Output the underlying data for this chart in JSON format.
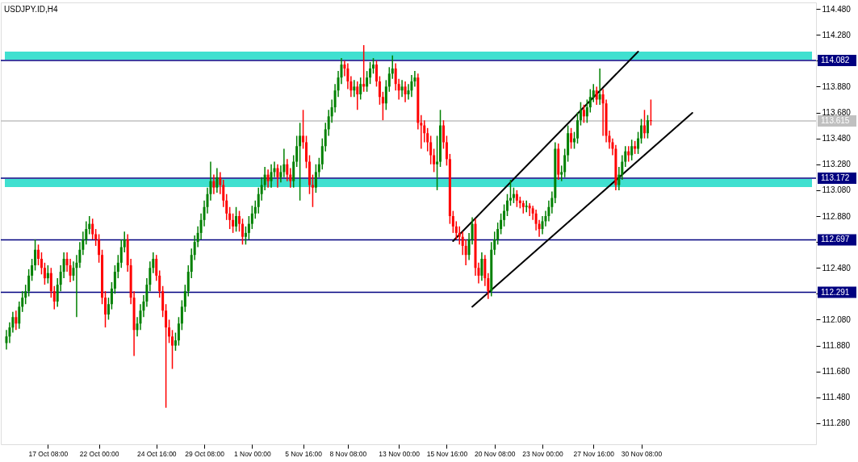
{
  "chart_data": {
    "type": "candlestick",
    "title": "USDJPY.ID,H4",
    "categories": [
      null,
      null,
      null,
      null,
      null,
      null,
      null,
      null,
      null,
      null,
      null,
      null,
      null,
      "17 Oct 08:00",
      null,
      null,
      null,
      null,
      null,
      null,
      null,
      null,
      null,
      null,
      null,
      null,
      null,
      null,
      null,
      "22 Oct 00:00",
      null,
      null,
      null,
      null,
      null,
      null,
      null,
      null,
      null,
      null,
      null,
      null,
      null,
      null,
      null,
      null,
      null,
      "24 Oct 16:00",
      null,
      null,
      null,
      null,
      null,
      null,
      null,
      null,
      null,
      null,
      null,
      null,
      null,
      null,
      "29 Oct 08:00",
      null,
      null,
      null,
      null,
      null,
      null,
      null,
      null,
      null,
      null,
      null,
      null,
      null,
      null,
      "1 Nov 00:00",
      null,
      null,
      null,
      null,
      null,
      null,
      null,
      null,
      null,
      null,
      null,
      null,
      null,
      null,
      null,
      "5 Nov 16:00",
      null,
      null,
      null,
      null,
      null,
      null,
      null,
      null,
      null,
      null,
      null,
      null,
      null,
      "8 Nov 08:00",
      null,
      null,
      null,
      null,
      null,
      null,
      null,
      null,
      null,
      null,
      null,
      null,
      null,
      null,
      null,
      "13 Nov 00:00",
      null,
      null,
      null,
      null,
      null,
      null,
      null,
      null,
      null,
      null,
      null,
      null,
      null,
      null,
      "15 Nov 16:00",
      null,
      null,
      null,
      null,
      null,
      null,
      null,
      null,
      null,
      null,
      null,
      null,
      null,
      null,
      "20 Nov 08:00",
      null,
      null,
      null,
      null,
      null,
      null,
      null,
      null,
      null,
      null,
      null,
      null,
      null,
      null,
      "23 Nov 00:00",
      null,
      null,
      null,
      null,
      null,
      null,
      null,
      null,
      null,
      null,
      null,
      null,
      null,
      null,
      null,
      "27 Nov 16:00",
      null,
      null,
      null,
      null,
      null,
      null,
      null,
      null,
      null,
      null,
      null,
      null,
      null,
      null,
      "30 Nov 08:00",
      null,
      null,
      null,
      null,
      null,
      null,
      null,
      null,
      null,
      null,
      null,
      null,
      null,
      null,
      null,
      null,
      null,
      null,
      null,
      null,
      null,
      null,
      null,
      null,
      null,
      null,
      null,
      null,
      null,
      null,
      null,
      null,
      null,
      null,
      null,
      null,
      null,
      null,
      null,
      null,
      null,
      null,
      null,
      null,
      null,
      null,
      null,
      null,
      null,
      null,
      null,
      null,
      null
    ],
    "ohlc": [
      [
        111.9,
        112.0,
        111.85,
        111.95
      ],
      [
        111.95,
        112.06,
        111.9,
        112.02
      ],
      [
        112.02,
        112.14,
        111.98,
        112.1
      ],
      [
        112.1,
        112.15,
        112.0,
        112.05
      ],
      [
        112.05,
        112.22,
        112.01,
        112.18
      ],
      [
        112.18,
        112.3,
        112.14,
        112.25
      ],
      [
        112.25,
        112.35,
        112.2,
        112.3
      ],
      [
        112.3,
        112.47,
        112.26,
        112.42
      ],
      [
        112.42,
        112.55,
        112.38,
        112.5
      ],
      [
        112.5,
        112.7,
        112.46,
        112.62
      ],
      [
        112.62,
        112.66,
        112.5,
        112.55
      ],
      [
        112.55,
        112.6,
        112.43,
        112.48
      ],
      [
        112.48,
        112.52,
        112.35,
        112.4
      ],
      [
        112.4,
        112.5,
        112.36,
        112.44
      ],
      [
        112.44,
        112.48,
        112.25,
        112.3
      ],
      [
        112.3,
        112.34,
        112.16,
        112.22
      ],
      [
        112.22,
        112.4,
        112.18,
        112.35
      ],
      [
        112.35,
        112.5,
        112.3,
        112.45
      ],
      [
        112.45,
        112.6,
        112.4,
        112.55
      ],
      [
        112.55,
        112.6,
        112.45,
        112.5
      ],
      [
        112.5,
        112.55,
        112.37,
        112.42
      ],
      [
        112.42,
        112.53,
        112.38,
        112.48
      ],
      [
        112.48,
        112.58,
        112.1,
        112.52
      ],
      [
        112.52,
        112.68,
        112.48,
        112.62
      ],
      [
        112.62,
        112.76,
        112.58,
        112.7
      ],
      [
        112.7,
        112.84,
        112.66,
        112.78
      ],
      [
        112.78,
        112.88,
        112.74,
        112.82
      ],
      [
        112.82,
        112.86,
        112.7,
        112.74
      ],
      [
        112.74,
        112.78,
        112.65,
        112.7
      ],
      [
        112.7,
        112.74,
        112.52,
        112.58
      ],
      [
        112.58,
        112.62,
        112.2,
        112.25
      ],
      [
        112.25,
        112.3,
        112.02,
        112.12
      ],
      [
        112.12,
        112.25,
        112.08,
        112.2
      ],
      [
        112.2,
        112.37,
        112.16,
        112.32
      ],
      [
        112.32,
        112.5,
        112.28,
        112.45
      ],
      [
        112.45,
        112.58,
        112.4,
        112.52
      ],
      [
        112.52,
        112.7,
        112.48,
        112.64
      ],
      [
        112.64,
        112.76,
        112.6,
        112.7
      ],
      [
        112.7,
        112.74,
        112.45,
        112.5
      ],
      [
        112.5,
        112.55,
        112.2,
        112.25
      ],
      [
        112.25,
        112.3,
        111.8,
        112.0
      ],
      [
        112.0,
        112.1,
        111.95,
        112.05
      ],
      [
        112.05,
        112.2,
        112.0,
        112.15
      ],
      [
        112.15,
        112.27,
        112.1,
        112.22
      ],
      [
        112.22,
        112.4,
        112.18,
        112.35
      ],
      [
        112.35,
        112.53,
        112.3,
        112.48
      ],
      [
        112.48,
        112.6,
        112.44,
        112.55
      ],
      [
        112.55,
        112.58,
        112.38,
        112.42
      ],
      [
        112.42,
        112.46,
        112.25,
        112.3
      ],
      [
        112.3,
        112.34,
        112.1,
        112.15
      ],
      [
        112.15,
        112.2,
        111.4,
        112.02
      ],
      [
        112.02,
        112.08,
        111.9,
        111.95
      ],
      [
        111.95,
        112.0,
        111.7,
        111.88
      ],
      [
        111.88,
        111.98,
        111.84,
        111.92
      ],
      [
        111.92,
        112.1,
        111.88,
        112.05
      ],
      [
        112.05,
        112.23,
        112.0,
        112.18
      ],
      [
        112.18,
        112.35,
        112.14,
        112.3
      ],
      [
        112.3,
        112.5,
        112.26,
        112.45
      ],
      [
        112.45,
        112.63,
        112.4,
        112.58
      ],
      [
        112.58,
        112.73,
        112.54,
        112.68
      ],
      [
        112.68,
        112.8,
        112.64,
        112.75
      ],
      [
        112.75,
        112.9,
        112.7,
        112.85
      ],
      [
        112.85,
        113.0,
        112.8,
        112.95
      ],
      [
        112.95,
        113.1,
        112.9,
        113.05
      ],
      [
        113.05,
        113.3,
        113.0,
        113.15
      ],
      [
        113.15,
        113.2,
        113.05,
        113.1
      ],
      [
        113.1,
        113.25,
        113.06,
        113.18
      ],
      [
        113.18,
        113.22,
        113.05,
        113.12
      ],
      [
        113.12,
        113.16,
        112.95,
        113.0
      ],
      [
        113.0,
        113.05,
        112.85,
        112.9
      ],
      [
        112.9,
        112.95,
        112.78,
        112.85
      ],
      [
        112.85,
        112.9,
        112.75,
        112.8
      ],
      [
        112.8,
        112.95,
        112.76,
        112.88
      ],
      [
        112.88,
        112.92,
        112.76,
        112.82
      ],
      [
        112.82,
        112.86,
        112.66,
        112.72
      ],
      [
        112.72,
        112.8,
        112.66,
        112.75
      ],
      [
        112.75,
        112.88,
        112.7,
        112.82
      ],
      [
        112.82,
        112.96,
        112.78,
        112.9
      ],
      [
        112.9,
        113.0,
        112.86,
        112.95
      ],
      [
        112.95,
        113.1,
        112.9,
        113.05
      ],
      [
        113.05,
        113.18,
        113.0,
        113.12
      ],
      [
        113.12,
        113.26,
        113.08,
        113.2
      ],
      [
        113.2,
        113.24,
        113.1,
        113.15
      ],
      [
        113.15,
        113.28,
        113.1,
        113.22
      ],
      [
        113.22,
        113.3,
        113.18,
        113.25
      ],
      [
        113.25,
        113.28,
        113.1,
        113.18
      ],
      [
        113.18,
        113.27,
        113.14,
        113.22
      ],
      [
        113.22,
        113.4,
        113.18,
        113.28
      ],
      [
        113.28,
        113.32,
        113.15,
        113.2
      ],
      [
        113.2,
        113.25,
        113.1,
        113.15
      ],
      [
        113.15,
        113.35,
        113.1,
        113.3
      ],
      [
        113.3,
        113.5,
        113.26,
        113.42
      ],
      [
        113.42,
        113.6,
        113.0,
        113.5
      ],
      [
        113.5,
        113.7,
        113.4,
        113.45
      ],
      [
        113.45,
        113.5,
        113.25,
        113.3
      ],
      [
        113.3,
        113.35,
        113.05,
        113.12
      ],
      [
        113.12,
        113.2,
        112.95,
        113.1
      ],
      [
        113.1,
        113.28,
        113.06,
        113.22
      ],
      [
        113.22,
        113.33,
        113.18,
        113.28
      ],
      [
        113.28,
        113.48,
        113.24,
        113.42
      ],
      [
        113.42,
        113.6,
        113.38,
        113.55
      ],
      [
        113.55,
        113.7,
        113.5,
        113.65
      ],
      [
        113.65,
        113.78,
        113.6,
        113.72
      ],
      [
        113.72,
        113.9,
        113.68,
        113.85
      ],
      [
        113.85,
        114.0,
        113.8,
        113.95
      ],
      [
        113.95,
        114.1,
        113.9,
        114.05
      ],
      [
        114.05,
        114.08,
        113.96,
        114.02
      ],
      [
        114.02,
        114.06,
        113.86,
        113.92
      ],
      [
        113.92,
        113.96,
        113.8,
        113.85
      ],
      [
        113.85,
        113.93,
        113.8,
        113.88
      ],
      [
        113.88,
        113.92,
        113.7,
        113.82
      ],
      [
        113.82,
        113.95,
        113.78,
        113.9
      ],
      [
        113.9,
        114.2,
        113.84,
        113.88
      ],
      [
        113.88,
        114.0,
        113.84,
        113.95
      ],
      [
        113.95,
        114.07,
        113.9,
        114.02
      ],
      [
        114.02,
        114.1,
        113.98,
        114.05
      ],
      [
        114.05,
        114.08,
        113.88,
        113.92
      ],
      [
        113.92,
        113.96,
        113.74,
        113.8
      ],
      [
        113.8,
        113.84,
        113.62,
        113.75
      ],
      [
        113.75,
        113.93,
        113.7,
        113.88
      ],
      [
        113.88,
        114.03,
        113.84,
        113.98
      ],
      [
        113.98,
        114.12,
        113.94,
        114.02
      ],
      [
        114.02,
        114.06,
        113.85,
        113.9
      ],
      [
        113.9,
        113.94,
        113.78,
        113.85
      ],
      [
        113.85,
        113.93,
        113.8,
        113.88
      ],
      [
        113.88,
        113.92,
        113.76,
        113.82
      ],
      [
        113.82,
        113.9,
        113.78,
        113.85
      ],
      [
        113.85,
        113.97,
        113.8,
        113.92
      ],
      [
        113.92,
        114.0,
        113.88,
        113.95
      ],
      [
        113.95,
        113.98,
        113.55,
        113.6
      ],
      [
        113.6,
        113.66,
        113.4,
        113.58
      ],
      [
        113.58,
        113.62,
        113.45,
        113.52
      ],
      [
        113.52,
        113.56,
        113.38,
        113.45
      ],
      [
        113.45,
        113.5,
        113.28,
        113.35
      ],
      [
        113.35,
        113.4,
        113.22,
        113.28
      ],
      [
        113.28,
        113.5,
        113.08,
        113.3
      ],
      [
        113.3,
        113.7,
        113.26,
        113.58
      ],
      [
        113.58,
        113.62,
        113.4,
        113.45
      ],
      [
        113.45,
        113.5,
        113.27,
        113.32
      ],
      [
        113.32,
        113.36,
        112.82,
        112.88
      ],
      [
        112.88,
        112.92,
        112.75,
        112.8
      ],
      [
        112.8,
        112.84,
        112.7,
        112.75
      ],
      [
        112.75,
        112.8,
        112.66,
        112.72
      ],
      [
        112.72,
        112.76,
        112.58,
        112.65
      ],
      [
        112.65,
        112.7,
        112.5,
        112.58
      ],
      [
        112.58,
        112.75,
        112.54,
        112.7
      ],
      [
        112.7,
        112.87,
        112.66,
        112.82
      ],
      [
        112.82,
        112.86,
        112.42,
        112.48
      ],
      [
        112.48,
        112.52,
        112.36,
        112.42
      ],
      [
        112.42,
        112.6,
        112.38,
        112.55
      ],
      [
        112.55,
        112.58,
        112.34,
        112.4
      ],
      [
        112.4,
        112.44,
        112.24,
        112.3
      ],
      [
        112.3,
        112.68,
        112.26,
        112.62
      ],
      [
        112.62,
        112.76,
        112.58,
        112.7
      ],
      [
        112.7,
        112.83,
        112.66,
        112.78
      ],
      [
        112.78,
        112.9,
        112.74,
        112.85
      ],
      [
        112.85,
        112.97,
        112.8,
        112.92
      ],
      [
        112.92,
        113.05,
        112.88,
        113.0
      ],
      [
        113.0,
        113.16,
        112.96,
        113.02
      ],
      [
        113.02,
        113.1,
        112.98,
        113.05
      ],
      [
        113.05,
        113.08,
        112.95,
        113.0
      ],
      [
        113.0,
        113.03,
        112.94,
        112.98
      ],
      [
        112.98,
        113.0,
        112.9,
        112.95
      ],
      [
        112.95,
        113.0,
        112.91,
        112.96
      ],
      [
        112.96,
        112.98,
        112.88,
        112.94
      ],
      [
        112.94,
        112.96,
        112.85,
        112.9
      ],
      [
        112.9,
        112.93,
        112.77,
        112.82
      ],
      [
        112.82,
        112.85,
        112.72,
        112.78
      ],
      [
        112.78,
        112.88,
        112.74,
        112.84
      ],
      [
        112.84,
        112.92,
        112.8,
        112.88
      ],
      [
        112.88,
        113.0,
        112.84,
        112.95
      ],
      [
        112.95,
        113.07,
        112.9,
        113.02
      ],
      [
        113.02,
        113.45,
        112.98,
        113.4
      ],
      [
        113.4,
        113.44,
        113.16,
        113.2
      ],
      [
        113.2,
        113.27,
        113.15,
        113.22
      ],
      [
        113.22,
        113.4,
        113.18,
        113.35
      ],
      [
        113.35,
        113.58,
        113.3,
        113.52
      ],
      [
        113.52,
        113.56,
        113.4,
        113.45
      ],
      [
        113.45,
        113.53,
        113.4,
        113.48
      ],
      [
        113.48,
        113.68,
        113.44,
        113.62
      ],
      [
        113.62,
        113.76,
        113.58,
        113.7
      ],
      [
        113.7,
        113.74,
        113.6,
        113.65
      ],
      [
        113.65,
        113.78,
        113.6,
        113.72
      ],
      [
        113.72,
        113.86,
        113.68,
        113.8
      ],
      [
        113.8,
        113.9,
        113.76,
        113.85
      ],
      [
        113.85,
        113.88,
        113.74,
        113.78
      ],
      [
        113.78,
        114.02,
        113.74,
        113.82
      ],
      [
        113.82,
        113.86,
        113.5,
        113.75
      ],
      [
        113.75,
        113.78,
        113.45,
        113.5
      ],
      [
        113.5,
        113.54,
        113.4,
        113.45
      ],
      [
        113.45,
        113.48,
        113.35,
        113.4
      ],
      [
        113.4,
        113.43,
        113.08,
        113.12
      ],
      [
        113.12,
        113.26,
        113.08,
        113.2
      ],
      [
        113.2,
        113.35,
        113.16,
        113.3
      ],
      [
        113.3,
        113.42,
        113.26,
        113.38
      ],
      [
        113.38,
        113.42,
        113.3,
        113.35
      ],
      [
        113.35,
        113.47,
        113.31,
        113.42
      ],
      [
        113.42,
        113.46,
        113.36,
        113.4
      ],
      [
        113.4,
        113.53,
        113.36,
        113.48
      ],
      [
        113.48,
        113.63,
        113.44,
        113.58
      ],
      [
        113.58,
        113.7,
        113.48,
        113.52
      ],
      [
        113.52,
        113.66,
        113.48,
        113.62
      ],
      [
        113.62,
        113.78,
        113.58,
        113.615
      ],
      null,
      null,
      null,
      null,
      null,
      null,
      null,
      null,
      null,
      null,
      null,
      null,
      null,
      null,
      null,
      null,
      null,
      null,
      null,
      null,
      null,
      null,
      null,
      null,
      null,
      null,
      null,
      null,
      null,
      null,
      null,
      null,
      null,
      null,
      null,
      null,
      null,
      null,
      null,
      null,
      null,
      null,
      null,
      null,
      null,
      null,
      null,
      null,
      null,
      null
    ],
    "series": [
      {
        "type": "line",
        "color": "#000000",
        "values": [
          null,
          null,
          null,
          null,
          null,
          null,
          null,
          null,
          null,
          null,
          null,
          null,
          null,
          null,
          null,
          null,
          null,
          null,
          null,
          null,
          null,
          null,
          null,
          null,
          null,
          null,
          null,
          null,
          null,
          null,
          null,
          null,
          null,
          null,
          null,
          null,
          null,
          null,
          null,
          null,
          null,
          null,
          null,
          null,
          null,
          null,
          null,
          null,
          null,
          null,
          null,
          null,
          null,
          null,
          null,
          null,
          null,
          null,
          null,
          null,
          null,
          null,
          null,
          null,
          null,
          null,
          null,
          null,
          null,
          null,
          null,
          null,
          null,
          null,
          null,
          null,
          null,
          null,
          null,
          null,
          null,
          null,
          null,
          null,
          null,
          null,
          null,
          null,
          null,
          null,
          null,
          null,
          null,
          null,
          null,
          null,
          null,
          null,
          null,
          null,
          null,
          null,
          null,
          null,
          null,
          null,
          null,
          null,
          null,
          null,
          null,
          null,
          null,
          null,
          null,
          null,
          null,
          null,
          null,
          null,
          null,
          null,
          null,
          null,
          null,
          null,
          null,
          null,
          null,
          null,
          null,
          null,
          null,
          null,
          null,
          null,
          null,
          null,
          null,
          null,
          112.687,
          null,
          null,
          null,
          null,
          null,
          null,
          null,
          null,
          null,
          null,
          null,
          null,
          null,
          null,
          null,
          null,
          null,
          null,
          null,
          null,
          null,
          null,
          null,
          null,
          null,
          null,
          null,
          null,
          null,
          null,
          null,
          null,
          null,
          null,
          null,
          null,
          null,
          null,
          null,
          null,
          null,
          null,
          null,
          null,
          null,
          null,
          null,
          null,
          null,
          null,
          null,
          null,
          null,
          null,
          null,
          null,
          null,
          114.15,
          null,
          null,
          null,
          null,
          null,
          null,
          null,
          null,
          null,
          null,
          null,
          null,
          null,
          null,
          null,
          null,
          null,
          null,
          null,
          null,
          null,
          null,
          null,
          null,
          null,
          null,
          null,
          null,
          null,
          null,
          null,
          null,
          null,
          null,
          null,
          null,
          null,
          null,
          null,
          null,
          null,
          null,
          null,
          null,
          null,
          null,
          null,
          null,
          null,
          null,
          null,
          null,
          null,
          null
        ]
      },
      {
        "type": "line",
        "color": "#000000",
        "values": [
          null,
          null,
          null,
          null,
          null,
          null,
          null,
          null,
          null,
          null,
          null,
          null,
          null,
          null,
          null,
          null,
          null,
          null,
          null,
          null,
          null,
          null,
          null,
          null,
          null,
          null,
          null,
          null,
          null,
          null,
          null,
          null,
          null,
          null,
          null,
          null,
          null,
          null,
          null,
          null,
          null,
          null,
          null,
          null,
          null,
          null,
          null,
          null,
          null,
          null,
          null,
          null,
          null,
          null,
          null,
          null,
          null,
          null,
          null,
          null,
          null,
          null,
          null,
          null,
          null,
          null,
          null,
          null,
          null,
          null,
          null,
          null,
          null,
          null,
          null,
          null,
          null,
          null,
          null,
          null,
          null,
          null,
          null,
          null,
          null,
          null,
          null,
          null,
          null,
          null,
          null,
          null,
          null,
          null,
          null,
          null,
          null,
          null,
          null,
          null,
          null,
          null,
          null,
          null,
          null,
          null,
          null,
          null,
          null,
          null,
          null,
          null,
          null,
          null,
          null,
          null,
          null,
          null,
          null,
          null,
          null,
          null,
          null,
          null,
          null,
          null,
          null,
          null,
          null,
          null,
          null,
          null,
          null,
          null,
          null,
          null,
          null,
          null,
          null,
          null,
          null,
          null,
          null,
          null,
          null,
          null,
          112.18,
          null,
          null,
          null,
          null,
          null,
          null,
          null,
          null,
          null,
          null,
          null,
          null,
          null,
          null,
          null,
          null,
          null,
          null,
          null,
          null,
          null,
          null,
          null,
          null,
          null,
          null,
          null,
          null,
          null,
          null,
          null,
          null,
          null,
          null,
          null,
          null,
          null,
          null,
          null,
          null,
          null,
          null,
          null,
          null,
          null,
          null,
          null,
          null,
          null,
          null,
          null,
          null,
          null,
          null,
          null,
          null,
          null,
          null,
          null,
          null,
          null,
          null,
          null,
          null,
          null,
          null,
          null,
          null,
          113.677,
          null,
          null,
          null,
          null,
          null,
          null,
          null,
          null,
          null,
          null,
          null,
          null,
          null,
          null,
          null,
          null,
          null,
          null,
          null,
          null,
          null,
          null,
          null,
          null,
          null,
          null,
          null,
          null,
          null,
          null,
          null,
          null,
          null,
          null,
          null,
          null,
          null
        ]
      }
    ],
    "ylim": [
      111.118,
      114.53
    ],
    "yticks": [
      {
        "value": 111.28,
        "label": "111.280"
      },
      {
        "value": 111.48,
        "label": "111.480"
      },
      {
        "value": 111.68,
        "label": "111.680"
      },
      {
        "value": 111.88,
        "label": "111.880"
      },
      {
        "value": 112.08,
        "label": "112.080"
      },
      {
        "value": 112.28,
        "label": null
      },
      {
        "value": 112.48,
        "label": "112.480"
      },
      {
        "value": 112.68,
        "label": null
      },
      {
        "value": 112.88,
        "label": "112.880"
      },
      {
        "value": 113.08,
        "label": "113.080"
      },
      {
        "value": 113.28,
        "label": "113.280"
      },
      {
        "value": 113.48,
        "label": "113.480"
      },
      {
        "value": 113.68,
        "label": "113.680"
      },
      {
        "value": 113.88,
        "label": "113.880"
      },
      {
        "value": 114.08,
        "label": null
      },
      {
        "value": 114.28,
        "label": "114.280"
      },
      {
        "value": 114.48,
        "label": "114.480"
      }
    ],
    "ref_lines": [
      {
        "axis": "y",
        "value": 114.082,
        "label": "114.082",
        "color": "#000080"
      },
      {
        "axis": "y",
        "value": 113.172,
        "label": "113.172",
        "color": "#000080"
      },
      {
        "axis": "y",
        "value": 112.697,
        "label": "112.697",
        "color": "#000080"
      },
      {
        "axis": "y",
        "value": 112.291,
        "label": "112.291",
        "color": "#000080"
      },
      {
        "axis": "y",
        "value": 113.615,
        "label": "113.615",
        "color": "#c0c0c0"
      }
    ],
    "bands": [
      {
        "axis": "y",
        "from": 114.088,
        "to": 114.15,
        "color": "#40e0d0"
      },
      {
        "axis": "y",
        "from": 113.104,
        "to": 113.166,
        "color": "#40e0d0"
      }
    ],
    "grid": false
  }
}
